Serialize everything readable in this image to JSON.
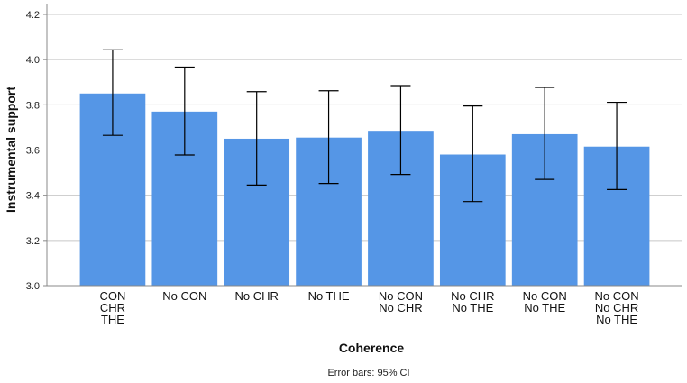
{
  "chart_data": {
    "type": "bar",
    "title": "",
    "xlabel": "Coherence",
    "ylabel": "Instrumental support",
    "ylim": [
      3.0,
      4.2
    ],
    "yticks": [
      "3.0",
      "3.2",
      "3.4",
      "3.6",
      "3.8",
      "4.0",
      "4.2"
    ],
    "grid": true,
    "categories": [
      [
        "CON",
        "CHR",
        "THE"
      ],
      [
        "No CON"
      ],
      [
        "No CHR"
      ],
      [
        "No THE"
      ],
      [
        "No CON",
        "No CHR"
      ],
      [
        "No CHR",
        "No THE"
      ],
      [
        "No CON",
        "No THE"
      ],
      [
        "No CON",
        "No CHR",
        "No THE"
      ]
    ],
    "values": [
      3.85,
      3.77,
      3.65,
      3.655,
      3.685,
      3.58,
      3.67,
      3.615
    ],
    "ci_lower": [
      3.665,
      3.578,
      3.445,
      3.452,
      3.492,
      3.372,
      3.47,
      3.425
    ],
    "ci_upper": [
      4.043,
      3.967,
      3.858,
      3.862,
      3.885,
      3.795,
      3.877,
      3.811
    ],
    "error_note": "Error bars: 95% CI",
    "bar_color": "#5596e6",
    "grid_color": "#c8c8c8",
    "axis_color": "#888888"
  }
}
